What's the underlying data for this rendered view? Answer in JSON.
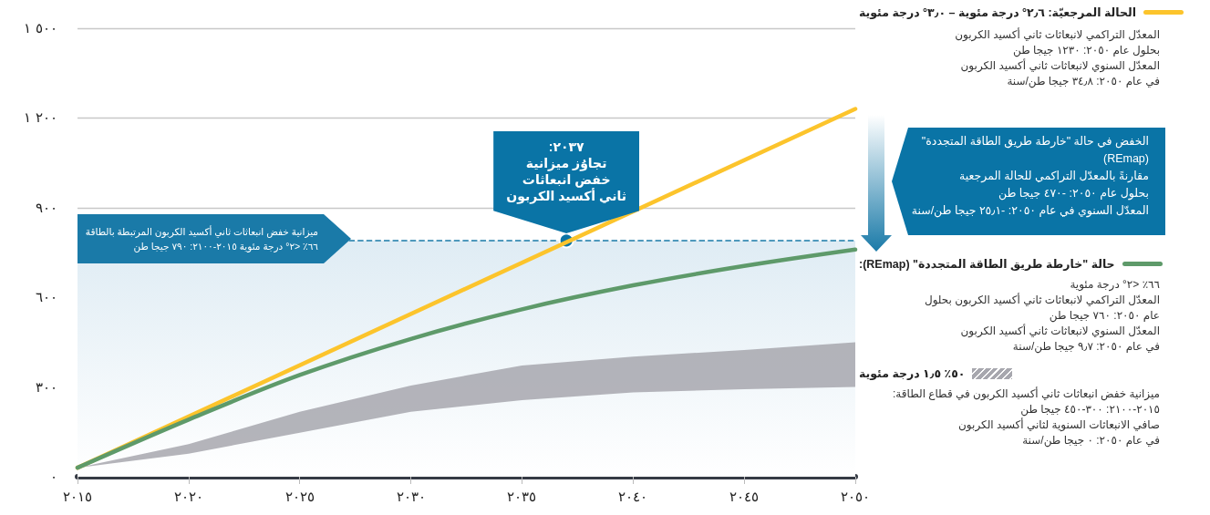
{
  "chart_data": {
    "type": "line",
    "xlim": [
      2015,
      2050
    ],
    "xticks": [
      {
        "value": 2015,
        "label": "٢٠١٥"
      },
      {
        "value": 2020,
        "label": "٢٠٢٠"
      },
      {
        "value": 2025,
        "label": "٢٠٢٥"
      },
      {
        "value": 2030,
        "label": "٢٠٣٠"
      },
      {
        "value": 2035,
        "label": "٢٠٣٥"
      },
      {
        "value": 2040,
        "label": "٢٠٤٠"
      },
      {
        "value": 2045,
        "label": "٢٠٤٥"
      },
      {
        "value": 2050,
        "label": "٢٠٥٠"
      }
    ],
    "ylim": [
      0,
      1500
    ],
    "yticks": [
      {
        "value": 0,
        "label": "٠"
      },
      {
        "value": 300,
        "label": "٣٠٠"
      },
      {
        "value": 600,
        "label": "٦٠٠"
      },
      {
        "value": 900,
        "label": "٩٠٠"
      },
      {
        "value": 1200,
        "label": "١ ٢٠٠"
      },
      {
        "value": 1500,
        "label": "١ ٥٠٠"
      }
    ],
    "grid": "y",
    "legend": "right",
    "marker": "none",
    "line_style": "solid",
    "series": [
      {
        "name": "الحالة المرجعيّة: ٢٫٦° درجة مئوية – ٣٫٠° درجة مئوية",
        "color": "#fcc42c",
        "x": [
          2015,
          2050
        ],
        "values": [
          30,
          1230
        ]
      },
      {
        "name": "حالة \"خارطة طريق الطاقة المتجددة\" (REmap):",
        "color": "#5e9a6a",
        "x": [
          2015,
          2020,
          2025,
          2030,
          2035,
          2040,
          2045,
          2050
        ],
        "values": [
          30,
          191,
          340,
          461,
          560,
          640,
          705,
          760
        ]
      },
      {
        "name": "٥٠٪ ١٫٥ درجة مئوية",
        "type": "area",
        "color": "#a7a7ae",
        "x": [
          2015,
          2020,
          2025,
          2030,
          2035,
          2040,
          2045,
          2050
        ],
        "values": [
          null,
          null,
          null,
          null,
          null,
          null,
          null,
          null
        ],
        "lower": [
          30,
          77,
          147,
          217,
          256,
          282,
          293,
          300
        ],
        "upper": [
          30,
          109,
          217,
          305,
          372,
          402,
          424,
          450
        ]
      }
    ],
    "bands": [
      {
        "axis": "y",
        "from": 0,
        "to": 790,
        "color": "#dfecf4"
      }
    ],
    "ref_lines": [
      {
        "axis": "y",
        "value": 790,
        "label": "ميزانية خفض انبعاثات ثاني أكسيد الكربون المرتبطة بالطاقة\n٦٦٪ <٢° درجة مئوية ٢٠١٥-٢١٠٠: ٧٩٠ جيجا طن",
        "color": "#1a7aa8",
        "line_style": "dashed"
      }
    ],
    "annotations": [
      "المعدّل التراكمي لانبعاثات ثاني أكسيد الكربون\nبحلول عام ٢٠٥٠: ١٢٣٠ جيجا طن\nالمعدّل السنوي لانبعاثات ثاني أكسيد الكربون\nفي عام ٢٠٥٠: ٣٤٫٨ جيجا طن/سنة",
      "٦٦٪ <٢° درجة مئوية\nالمعدّل التراكمي لانبعاثات ثاني أكسيد الكربون بحلول\nعام ٢٠٥٠: ٧٦٠ جيجا طن\nالمعدّل السنوي لانبعاثات ثاني أكسيد الكربون\nفي عام ٢٠٥٠: ٩٫٧ جيجا طن/سنة",
      "ميزانية خفض انبعاثات ثاني أكسيد الكربون في قطاع الطاقة:\n٢٠١٥-٢١٠٠: ٣٠٠-٤٥٠ جيجا طن\nصافي الانبعاثات السنوية لثاني أكسيد الكربون\nفي عام ٢٠٥٠: ٠ جيجا طن/سنة",
      "الخفض في حالة \"خارطة طريق الطاقة المتجددة\"\n(REmap)\nمقارنةً بالمعدّل التراكمي للحالة المرجعية\nبحلول عام ٢٠٥٠: -٤٧٠ جيجا طن\nالمعدّل السنوي في عام ٢٠٥٠: -٢٥٫١ جيجا طن/سنة",
      {
        "text": "٢٠٣٧:\nتجاوُز ميزانية\nخفض انبعاثات\nثاني أكسيد الكربون",
        "x": 2037,
        "y": 790
      }
    ]
  }
}
